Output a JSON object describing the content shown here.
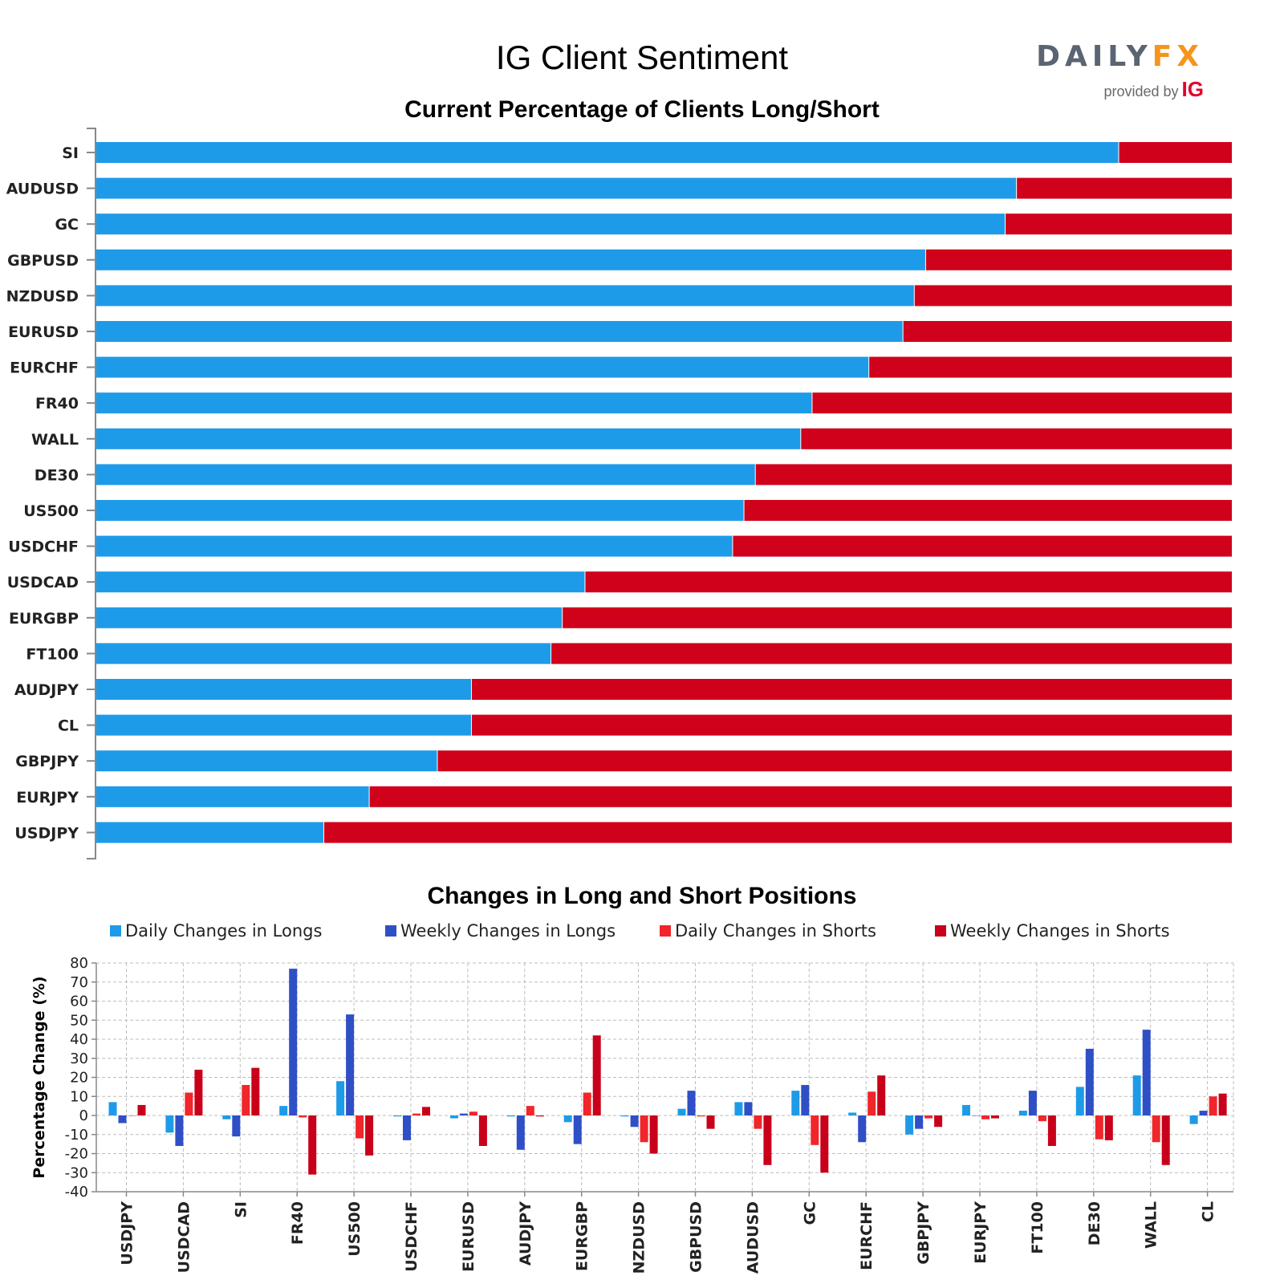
{
  "header": {
    "title": "IG Client Sentiment",
    "logo_daily": "DAILY",
    "logo_fx": "FX",
    "logo_provided": "provided by",
    "logo_ig": "IG"
  },
  "colors": {
    "long": "#1e9be8",
    "short": "#d0021b",
    "daily_longs": "#1e9be8",
    "weekly_longs": "#2f4fc7",
    "daily_shorts": "#f0262a",
    "weekly_shorts": "#c8001a"
  },
  "chart_data": [
    {
      "type": "bar",
      "orientation": "horizontal",
      "stacked": true,
      "title": "Current Percentage of Clients Long/Short",
      "categories": [
        "SI",
        "AUDUSD",
        "GC",
        "GBPUSD",
        "NZDUSD",
        "EURUSD",
        "EURCHF",
        "FR40",
        "WALL",
        "DE30",
        "US500",
        "USDCHF",
        "USDCAD",
        "EURGBP",
        "FT100",
        "AUDJPY",
        "CL",
        "GBPJPY",
        "EURJPY",
        "USDJPY"
      ],
      "series": [
        {
          "values": [
            90,
            81,
            80,
            73,
            72,
            71,
            68,
            63,
            62,
            58,
            57,
            56,
            43,
            41,
            40,
            33,
            33,
            30,
            24,
            20
          ]
        },
        {
          "values": [
            10,
            19,
            20,
            27,
            28,
            29,
            32,
            37,
            38,
            42,
            43,
            44,
            57,
            59,
            60,
            67,
            67,
            70,
            76,
            80
          ]
        }
      ],
      "xlim": [
        0,
        100
      ]
    },
    {
      "type": "bar",
      "title": "Changes in Long and Short Positions",
      "ylabel": "Percentage Change (%)",
      "ylim": [
        -40,
        80
      ],
      "yticks": [
        80,
        70,
        60,
        50,
        40,
        30,
        20,
        10,
        0,
        -10,
        -20,
        -30,
        -40
      ],
      "grid": true,
      "legend": "top",
      "categories": [
        "USDJPY",
        "USDCAD",
        "SI",
        "FR40",
        "US500",
        "USDCHF",
        "EURUSD",
        "AUDJPY",
        "EURGBP",
        "NZDUSD",
        "GBPUSD",
        "AUDUSD",
        "GC",
        "EURCHF",
        "GBPJPY",
        "EURJPY",
        "FT100",
        "DE30",
        "WALL",
        "CL"
      ],
      "series": [
        {
          "name": "Daily Changes in Longs",
          "values": [
            7,
            -9,
            -2,
            5,
            18,
            -0.5,
            -1.5,
            -0.5,
            -3.5,
            -0.5,
            3.5,
            7,
            13,
            1.5,
            -10,
            5.5,
            2.5,
            15,
            21,
            -4.5
          ]
        },
        {
          "name": "Weekly Changes in Longs",
          "values": [
            -4,
            -16,
            -11,
            77,
            53,
            -13,
            1,
            -18,
            -15,
            -6,
            13,
            7,
            16,
            -14,
            -7,
            0,
            13,
            35,
            45,
            2.5
          ]
        },
        {
          "name": "Daily Changes in Shorts",
          "values": [
            0,
            12,
            16,
            -1,
            -12,
            1,
            2,
            5,
            12,
            -14,
            -0.5,
            -7,
            -15.5,
            12.5,
            -1.5,
            -2,
            -3,
            -12.5,
            -14,
            10
          ]
        },
        {
          "name": "Weekly Changes in Shorts",
          "values": [
            5.5,
            24,
            25,
            -31,
            -21,
            4.5,
            -16,
            -0.5,
            42,
            -20,
            -7,
            -26,
            -30,
            21,
            -6,
            -1.5,
            -16,
            -13,
            -26,
            11.5
          ]
        }
      ]
    }
  ]
}
